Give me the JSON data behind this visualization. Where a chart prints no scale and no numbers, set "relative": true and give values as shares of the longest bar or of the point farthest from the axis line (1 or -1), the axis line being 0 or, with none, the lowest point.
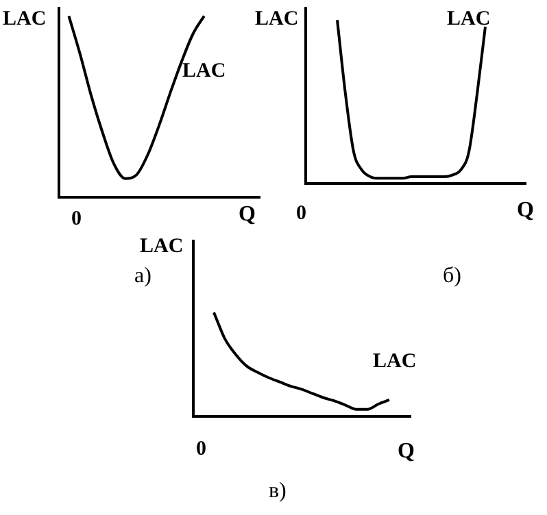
{
  "chart_data": [
    {
      "type": "line",
      "title": "а)",
      "xlabel": "Q",
      "ylabel": "LAC",
      "annotations": [
        "0"
      ],
      "relative": true,
      "categories": [
        null,
        null,
        null,
        null,
        null,
        null,
        null,
        null,
        null,
        null,
        null,
        null,
        null,
        null,
        null,
        null,
        null,
        null,
        null
      ],
      "series": [
        {
          "name": "LAC",
          "color": "#000000",
          "values": [
            null,
            1.0,
            0.79,
            0.56,
            0.36,
            0.19,
            0.11,
            0.13,
            0.24,
            0.4,
            0.58,
            0.75,
            0.9,
            1.0,
            null,
            null,
            null,
            null,
            null
          ]
        }
      ]
    },
    {
      "type": "line",
      "title": "б)",
      "xlabel": "Q",
      "ylabel": "LAC",
      "annotations": [
        "0"
      ],
      "relative": true,
      "categories": [
        null,
        null,
        null,
        null,
        null,
        null,
        null,
        null,
        null,
        null,
        null,
        null,
        null,
        null,
        null,
        null,
        null,
        null,
        null,
        null,
        null,
        null,
        null,
        null,
        null,
        null,
        null,
        null
      ],
      "series": [
        {
          "name": "LAC",
          "color": "#000000",
          "values": [
            null,
            null,
            null,
            null,
            1.0,
            0.55,
            0.2,
            0.09,
            0.05,
            0.04,
            0.04,
            0.04,
            0.04,
            0.05,
            0.05,
            0.05,
            0.05,
            0.05,
            0.06,
            0.09,
            0.2,
            0.55,
            0.96,
            null,
            null,
            null,
            null,
            null
          ]
        }
      ]
    },
    {
      "type": "line",
      "title": "в)",
      "xlabel": "Q",
      "ylabel": "LAC",
      "annotations": [
        "0"
      ],
      "relative": true,
      "categories": [
        null,
        null,
        null,
        null,
        null,
        null,
        null,
        null,
        null,
        null,
        null,
        null,
        null,
        null,
        null,
        null,
        null,
        null,
        null,
        null,
        null
      ],
      "series": [
        {
          "name": "LAC",
          "color": "#000000",
          "values": [
            null,
            null,
            1.0,
            0.75,
            0.6,
            0.49,
            0.43,
            0.38,
            0.34,
            0.3,
            0.27,
            0.23,
            0.19,
            0.16,
            0.12,
            0.08,
            0.08,
            0.13,
            0.17,
            null,
            null
          ]
        }
      ]
    }
  ]
}
